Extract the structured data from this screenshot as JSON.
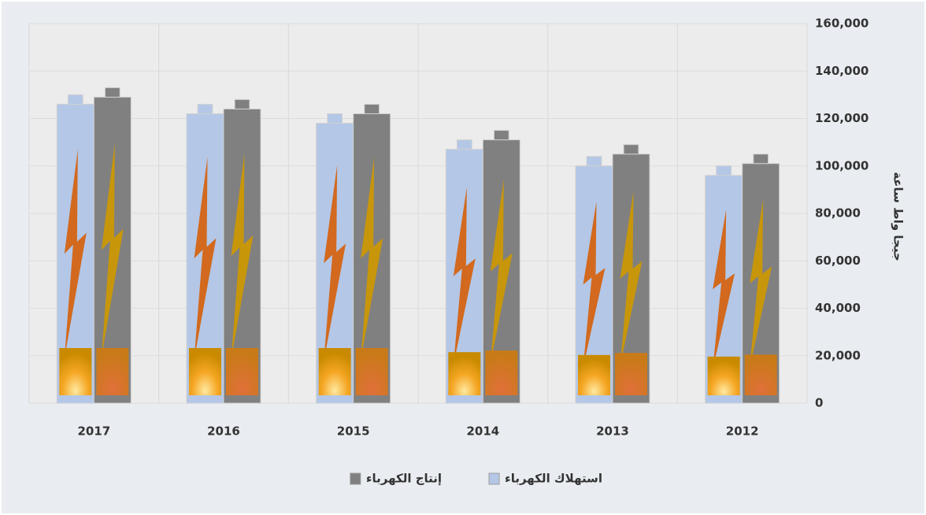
{
  "chart_data": {
    "type": "bar",
    "y_axis_title": "جيجا واط ساعة",
    "categories": [
      "2017",
      "2016",
      "2015",
      "2014",
      "2013",
      "2012"
    ],
    "series": [
      {
        "name": "استهلاك الكهرباء",
        "color": "#b4c7e7",
        "values": [
          130000,
          126000,
          122000,
          111000,
          104000,
          100000
        ]
      },
      {
        "name": "إنتاج الكهرباء",
        "color": "#808080",
        "values": [
          133000,
          128000,
          126000,
          115000,
          109000,
          105000
        ]
      }
    ],
    "ylim": [
      0,
      160000
    ],
    "yticks": [
      {
        "value": 0,
        "label": "0"
      },
      {
        "value": 20000,
        "label": "20,000"
      },
      {
        "value": 40000,
        "label": "40,000"
      },
      {
        "value": 60000,
        "label": "60,000"
      },
      {
        "value": 80000,
        "label": "80,000"
      },
      {
        "value": 100000,
        "label": "100,000"
      },
      {
        "value": 120000,
        "label": "120,000"
      },
      {
        "value": 140000,
        "label": "140,000"
      },
      {
        "value": 160000,
        "label": "160,000"
      }
    ],
    "y_axis_side": "right",
    "grid": true
  }
}
